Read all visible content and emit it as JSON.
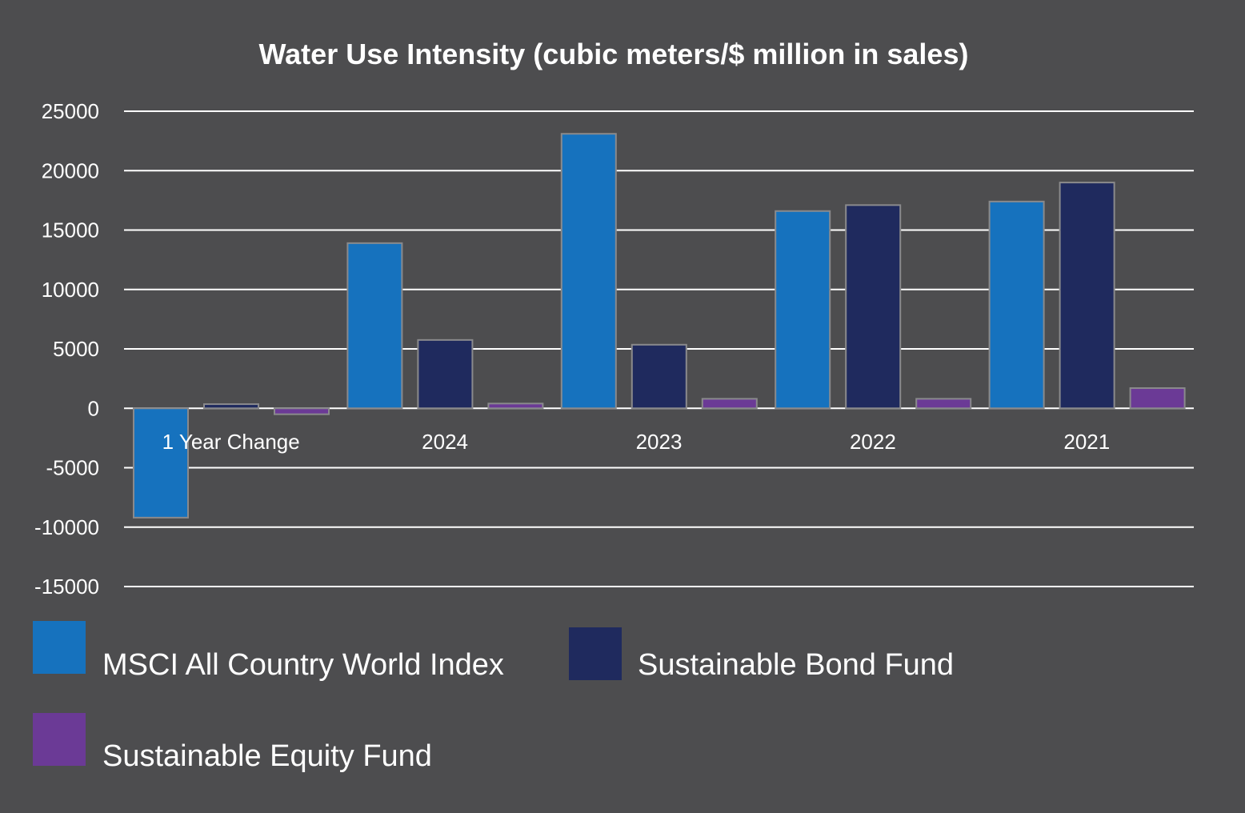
{
  "chart_data": {
    "type": "bar",
    "title": "Water Use Intensity (cubic meters/$ million in sales)",
    "xlabel": "",
    "ylabel": "",
    "ylim": [
      -15000,
      25000
    ],
    "yticks": [
      25000,
      20000,
      15000,
      10000,
      5000,
      0,
      -5000,
      -10000,
      -15000
    ],
    "ytick_labels": [
      "25000",
      "20000",
      "15000",
      "10000",
      "5000",
      "0",
      "-5000",
      "-10000",
      "-15000"
    ],
    "grid": true,
    "categories": [
      "1 Year Change",
      "2024",
      "2023",
      "2022",
      "2021"
    ],
    "series": [
      {
        "name": "MSCI All Country World Index",
        "color": "#1672be",
        "values": [
          -9200,
          13900,
          23100,
          16600,
          17400
        ]
      },
      {
        "name": "Sustainable Bond Fund",
        "color": "#1f2a5e",
        "values": [
          350,
          5750,
          5350,
          17100,
          19000
        ]
      },
      {
        "name": "Sustainable Equity Fund",
        "color": "#6b3a96",
        "values": [
          -500,
          400,
          800,
          800,
          1700
        ]
      }
    ],
    "legend_position": "bottom"
  }
}
